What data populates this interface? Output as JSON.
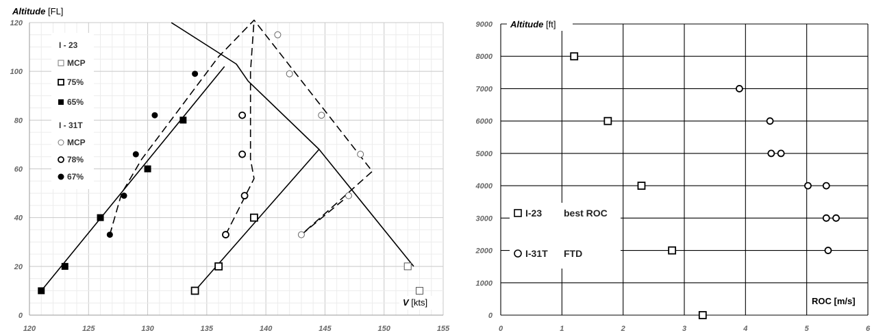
{
  "chart_data": [
    {
      "type": "line",
      "title": "",
      "ylabel_italic": "Altitude",
      "ylabel_unit": "[FL]",
      "xlabel_italic": "V",
      "xlabel_unit": "[kts]",
      "xlim": [
        120,
        155
      ],
      "ylim": [
        0,
        120
      ],
      "x_ticks": [
        120,
        125,
        130,
        135,
        140,
        145,
        150,
        155
      ],
      "y_ticks": [
        0,
        20,
        40,
        60,
        80,
        100,
        120
      ],
      "grid": true,
      "legend": {
        "groups": [
          {
            "title": "I - 23",
            "items": [
              {
                "label": "MCP",
                "marker": "square-open-thin"
              },
              {
                "label": "75%",
                "marker": "square-open"
              },
              {
                "label": "65%",
                "marker": "square-filled"
              }
            ]
          },
          {
            "title": "I - 31T",
            "items": [
              {
                "label": "MCP",
                "marker": "circle-open-thin"
              },
              {
                "label": "78%",
                "marker": "circle-open"
              },
              {
                "label": "67%",
                "marker": "circle-filled"
              }
            ]
          }
        ]
      },
      "series": [
        {
          "marker": "square-open-thin",
          "style": "solid",
          "points": [
            [
              152,
              20
            ],
            [
              153,
              10
            ]
          ]
        },
        {
          "marker": "square-open",
          "style": "solid",
          "points": [
            [
              134,
              10
            ],
            [
              136,
              20
            ],
            [
              139,
              40
            ]
          ]
        },
        {
          "marker": "square-filled",
          "style": "solid",
          "points": [
            [
              121,
              10
            ],
            [
              123,
              20
            ],
            [
              126,
              40
            ],
            [
              130,
              60
            ],
            [
              133,
              80
            ]
          ]
        },
        {
          "marker": "circle-open-thin",
          "style": "dashed",
          "points": [
            [
              141,
              115
            ],
            [
              142,
              99
            ],
            [
              144.7,
              82
            ],
            [
              148,
              66
            ],
            [
              147,
              49
            ],
            [
              143,
              33
            ]
          ]
        },
        {
          "marker": "circle-open",
          "style": "dashed",
          "points": [
            [
              138,
              82
            ],
            [
              138,
              66
            ],
            [
              138.2,
              49
            ],
            [
              136.6,
              33
            ]
          ]
        },
        {
          "marker": "circle-filled",
          "style": "dashed",
          "points": [
            [
              134,
              99
            ],
            [
              130.6,
              82
            ],
            [
              129,
              66
            ],
            [
              128,
              49
            ],
            [
              126.8,
              33
            ]
          ]
        }
      ],
      "envelope_lines": [
        {
          "style": "solid",
          "points": [
            [
              121,
              10
            ],
            [
              136.5,
              102
            ]
          ]
        },
        {
          "style": "solid",
          "points": [
            [
              132,
              120
            ],
            [
              137.5,
              103
            ],
            [
              138.5,
              96
            ],
            [
              144.5,
              68
            ],
            [
              152.5,
              20
            ]
          ]
        },
        {
          "style": "solid",
          "points": [
            [
              134,
              10
            ],
            [
              144.5,
              68
            ]
          ]
        },
        {
          "style": "dashed",
          "points": [
            [
              126.8,
              33
            ],
            [
              127.8,
              50
            ],
            [
              129.5,
              64
            ],
            [
              136,
              106
            ],
            [
              139,
              121
            ],
            [
              149,
              59
            ],
            [
              143,
              33
            ]
          ]
        },
        {
          "style": "dashed",
          "points": [
            [
              136.6,
              33
            ],
            [
              139,
              56
            ],
            [
              138.7,
              64
            ],
            [
              138.7,
              100
            ],
            [
              139,
              121
            ]
          ]
        },
        {
          "style": "dashed",
          "points": [
            [
              143,
              33
            ],
            [
              147,
              49
            ]
          ]
        }
      ]
    },
    {
      "type": "scatter",
      "title": "",
      "ylabel_italic": "Altitude",
      "ylabel_unit": "[ft]",
      "xlabel": "ROC [m/s]",
      "xlim": [
        0,
        6
      ],
      "ylim": [
        0,
        9000
      ],
      "x_ticks": [
        0,
        1,
        2,
        3,
        4,
        5,
        6
      ],
      "y_ticks": [
        0,
        1000,
        2000,
        3000,
        4000,
        5000,
        6000,
        7000,
        8000,
        9000
      ],
      "grid": true,
      "legend": {
        "items": [
          {
            "label": "I-23",
            "desc": "best ROC",
            "marker": "square-open"
          },
          {
            "label": "I-31T",
            "desc": "FTD",
            "marker": "circle-open"
          }
        ]
      },
      "series": [
        {
          "marker": "square-open",
          "points": [
            [
              1.2,
              8000
            ],
            [
              1.75,
              6000
            ],
            [
              2.3,
              4000
            ],
            [
              2.8,
              2000
            ],
            [
              3.3,
              0
            ]
          ]
        },
        {
          "marker": "circle-open",
          "points": [
            [
              3.9,
              7000
            ],
            [
              4.4,
              6000
            ],
            [
              4.42,
              5000
            ],
            [
              4.58,
              5000
            ],
            [
              5.02,
              4000
            ],
            [
              5.32,
              4000
            ],
            [
              5.32,
              3000
            ],
            [
              5.48,
              3000
            ],
            [
              5.35,
              2000
            ]
          ]
        }
      ]
    }
  ]
}
